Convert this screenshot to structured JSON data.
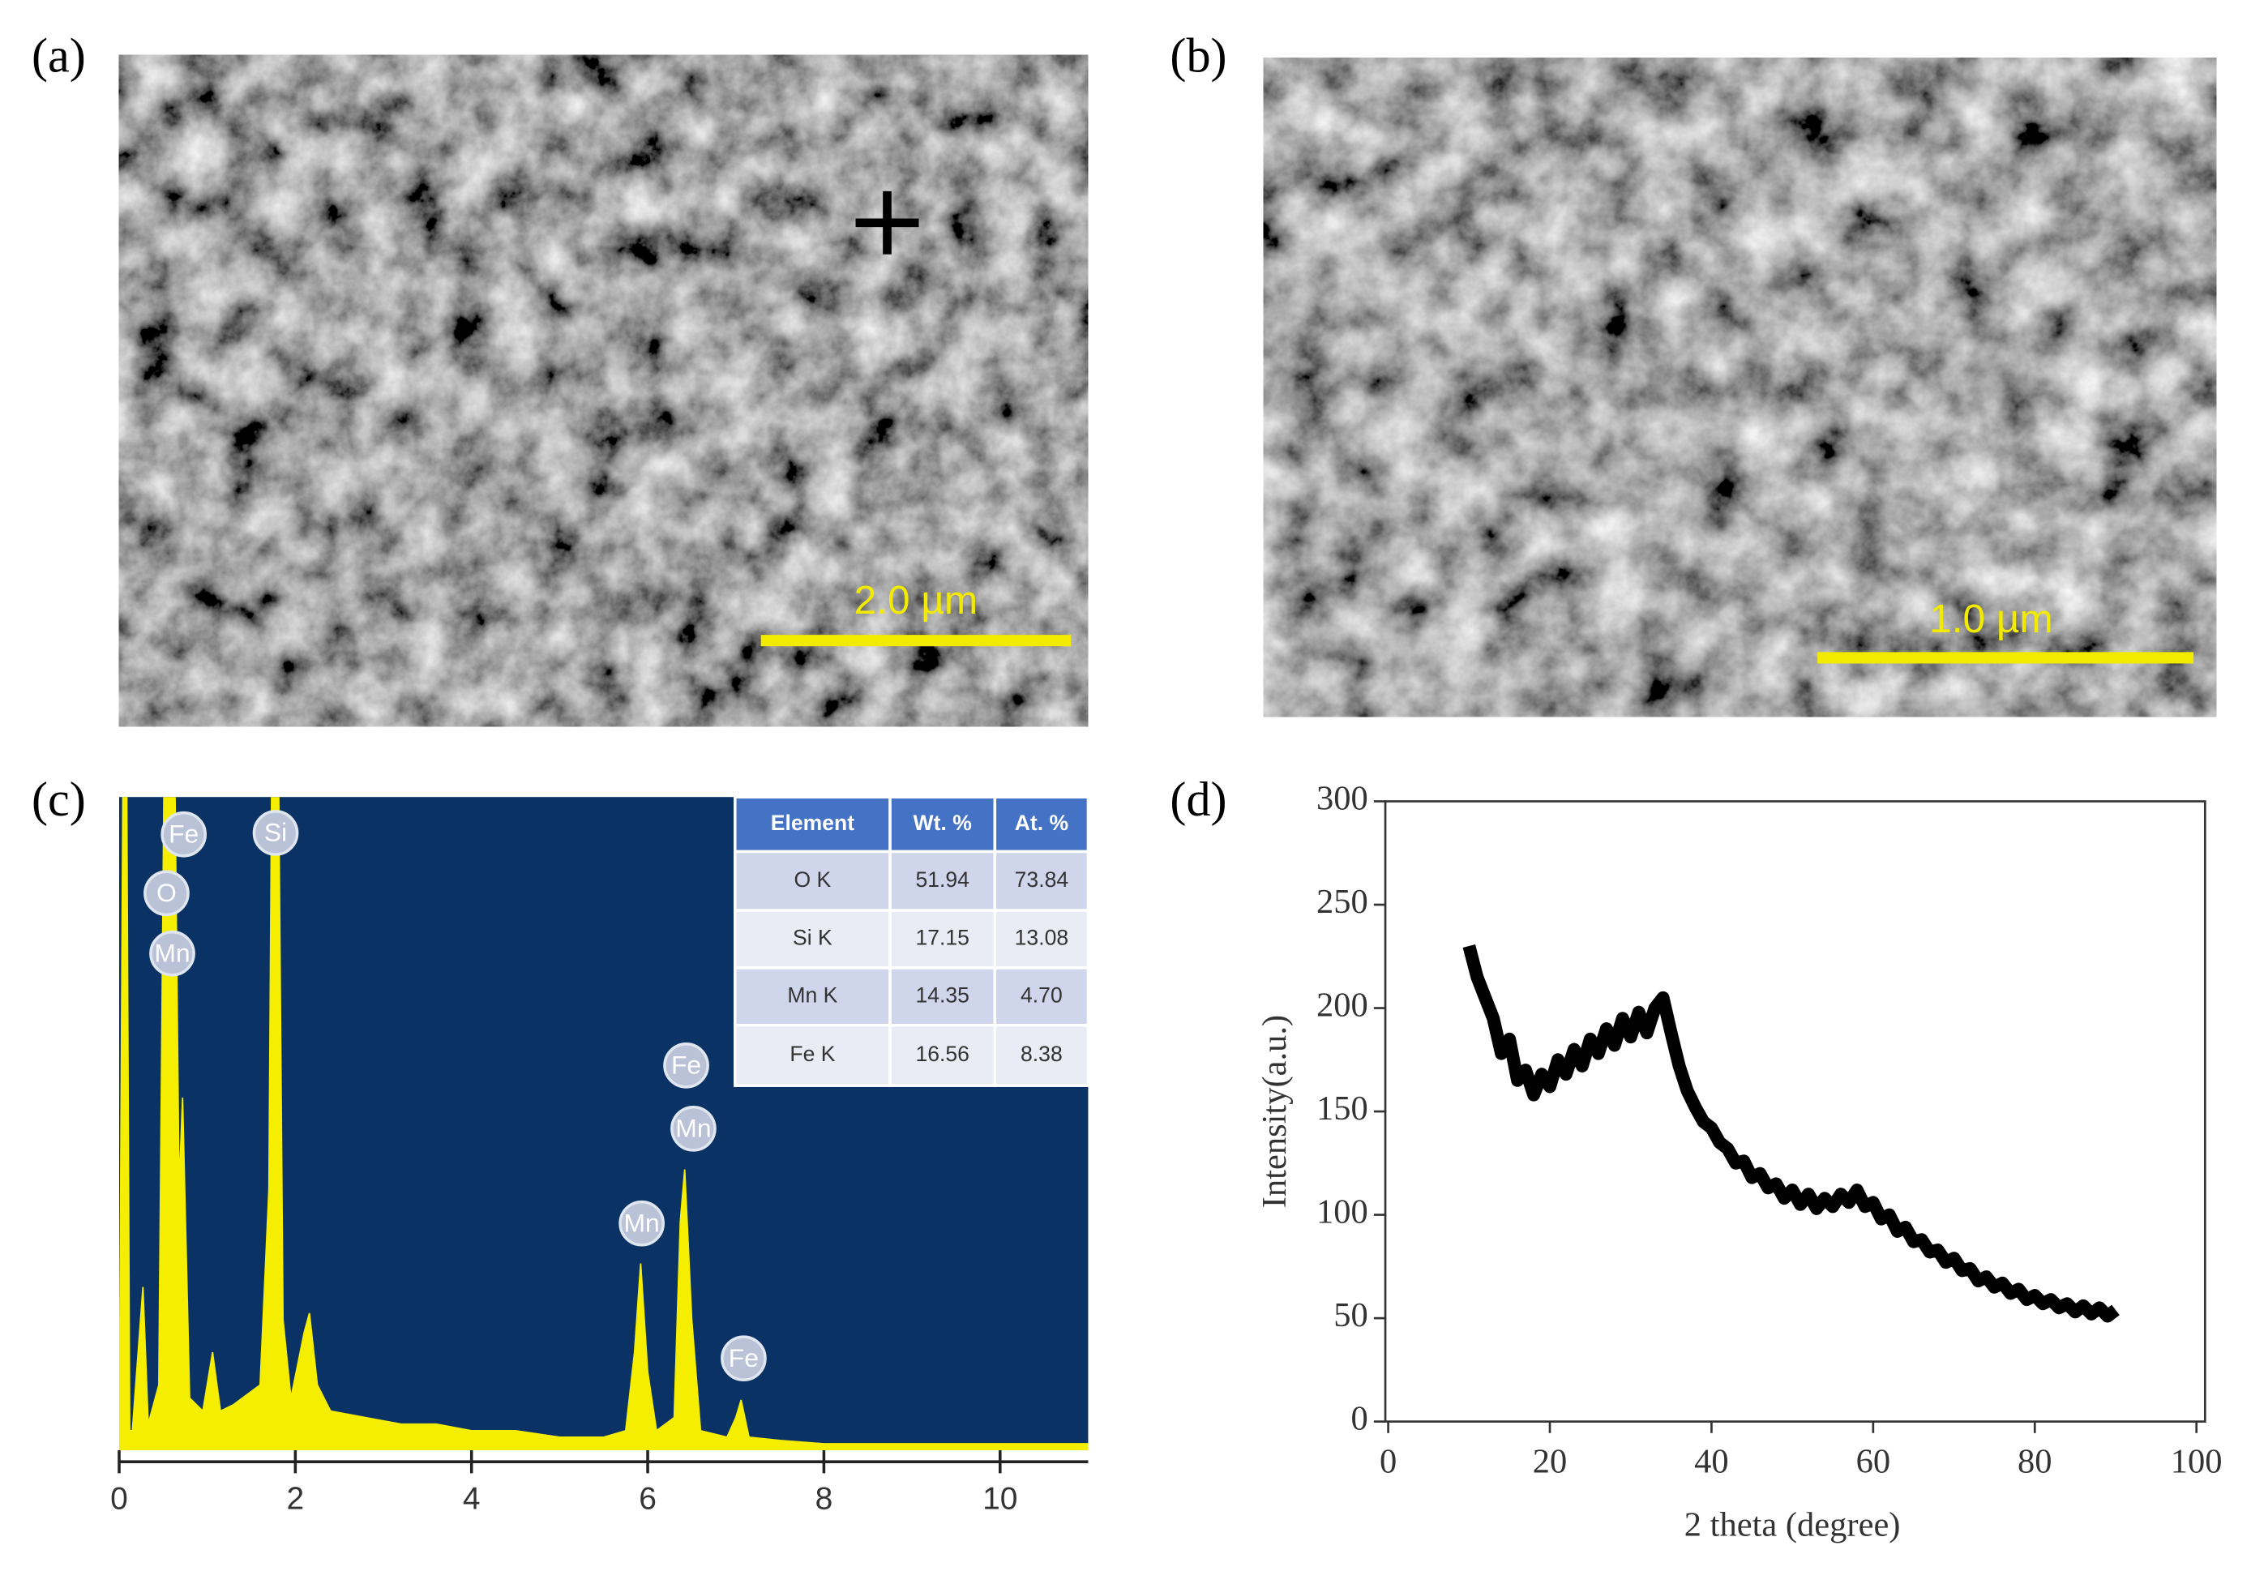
{
  "panels": {
    "a": {
      "label": "(a)",
      "scale_bar": "2.0 µm"
    },
    "b": {
      "label": "(b)",
      "scale_bar": "1.0 µm"
    },
    "c": {
      "label": "(c)"
    },
    "d": {
      "label": "(d)"
    }
  },
  "table": {
    "header": [
      "Element",
      "Wt. %",
      "At. %"
    ],
    "rows": [
      [
        "O K",
        "51.94",
        "73.84"
      ],
      [
        "Si K",
        "17.15",
        "13.08"
      ],
      [
        "Mn K",
        "14.35",
        "4.70"
      ],
      [
        "Fe K",
        "16.56",
        "8.38"
      ]
    ]
  },
  "chart_data": [
    {
      "type": "area",
      "color": "#f5ee00",
      "background": "#0b3265",
      "x": [
        0,
        0.05,
        0.08,
        0.12,
        0.15,
        0.27,
        0.33,
        0.45,
        0.52,
        0.62,
        0.68,
        0.72,
        0.8,
        0.95,
        1.06,
        1.15,
        1.3,
        1.5,
        1.6,
        1.7,
        1.74,
        1.8,
        1.86,
        1.95,
        2.1,
        2.16,
        2.25,
        2.4,
        2.8,
        3.2,
        3.6,
        4.0,
        4.5,
        5.0,
        5.5,
        5.75,
        5.85,
        5.92,
        6.0,
        6.1,
        6.3,
        6.37,
        6.42,
        6.5,
        6.6,
        6.9,
        7.0,
        7.06,
        7.15,
        7.5,
        8,
        9,
        10,
        11
      ],
      "values": [
        0,
        120,
        120,
        3,
        3,
        25,
        4,
        10,
        120,
        120,
        40,
        54,
        8,
        6,
        15,
        6,
        7,
        9,
        10,
        40,
        120,
        120,
        20,
        8,
        18,
        21,
        10,
        6,
        5,
        4,
        4,
        3,
        3,
        2,
        2,
        3,
        15,
        28.6,
        12,
        3,
        5,
        35,
        43,
        20,
        3,
        2,
        5,
        7.7,
        2,
        1.5,
        1,
        1,
        1,
        1
      ],
      "xlim": [
        0,
        11
      ],
      "ylim": [
        0,
        100
      ],
      "xticks": [
        0,
        2,
        4,
        6,
        8,
        10
      ],
      "annotations": [
        "Fe",
        "O",
        "Mn",
        "Si",
        "Fe",
        "Mn",
        "Mn",
        "Fe"
      ]
    },
    {
      "type": "line",
      "color": "#000000",
      "x_label": "2 theta (degree)",
      "y_label": "Intensity(a.u.)",
      "x": [
        10,
        11,
        12,
        13,
        14,
        15,
        16,
        17,
        18,
        19,
        20,
        21,
        22,
        23,
        24,
        25,
        26,
        27,
        28,
        29,
        30,
        31,
        32,
        33,
        34,
        35,
        36,
        37,
        38,
        39,
        40,
        41,
        42,
        43,
        44,
        45,
        46,
        47,
        48,
        49,
        50,
        51,
        52,
        53,
        54,
        55,
        56,
        57,
        58,
        59,
        60,
        61,
        62,
        63,
        64,
        65,
        66,
        67,
        68,
        69,
        70,
        71,
        72,
        73,
        74,
        75,
        76,
        77,
        78,
        79,
        80,
        81,
        82,
        83,
        84,
        85,
        86,
        87,
        88,
        89,
        90
      ],
      "values": [
        230,
        215,
        205,
        195,
        178,
        185,
        165,
        170,
        158,
        168,
        162,
        175,
        168,
        180,
        172,
        185,
        178,
        190,
        182,
        195,
        186,
        198,
        188,
        200,
        205,
        188,
        172,
        160,
        152,
        145,
        142,
        135,
        132,
        125,
        126,
        118,
        120,
        113,
        115,
        108,
        112,
        105,
        110,
        103,
        108,
        104,
        110,
        106,
        112,
        104,
        106,
        98,
        100,
        92,
        94,
        87,
        88,
        82,
        83,
        77,
        79,
        73,
        74,
        68,
        70,
        65,
        67,
        62,
        64,
        59,
        61,
        57,
        59,
        55,
        57,
        53,
        56,
        52,
        55,
        51,
        54
      ],
      "xlim": [
        0,
        100
      ],
      "ylim": [
        0,
        300
      ],
      "xticks": [
        0,
        20,
        40,
        60,
        80,
        100
      ],
      "yticks": [
        0,
        50,
        100,
        150,
        200,
        250,
        300
      ]
    }
  ]
}
